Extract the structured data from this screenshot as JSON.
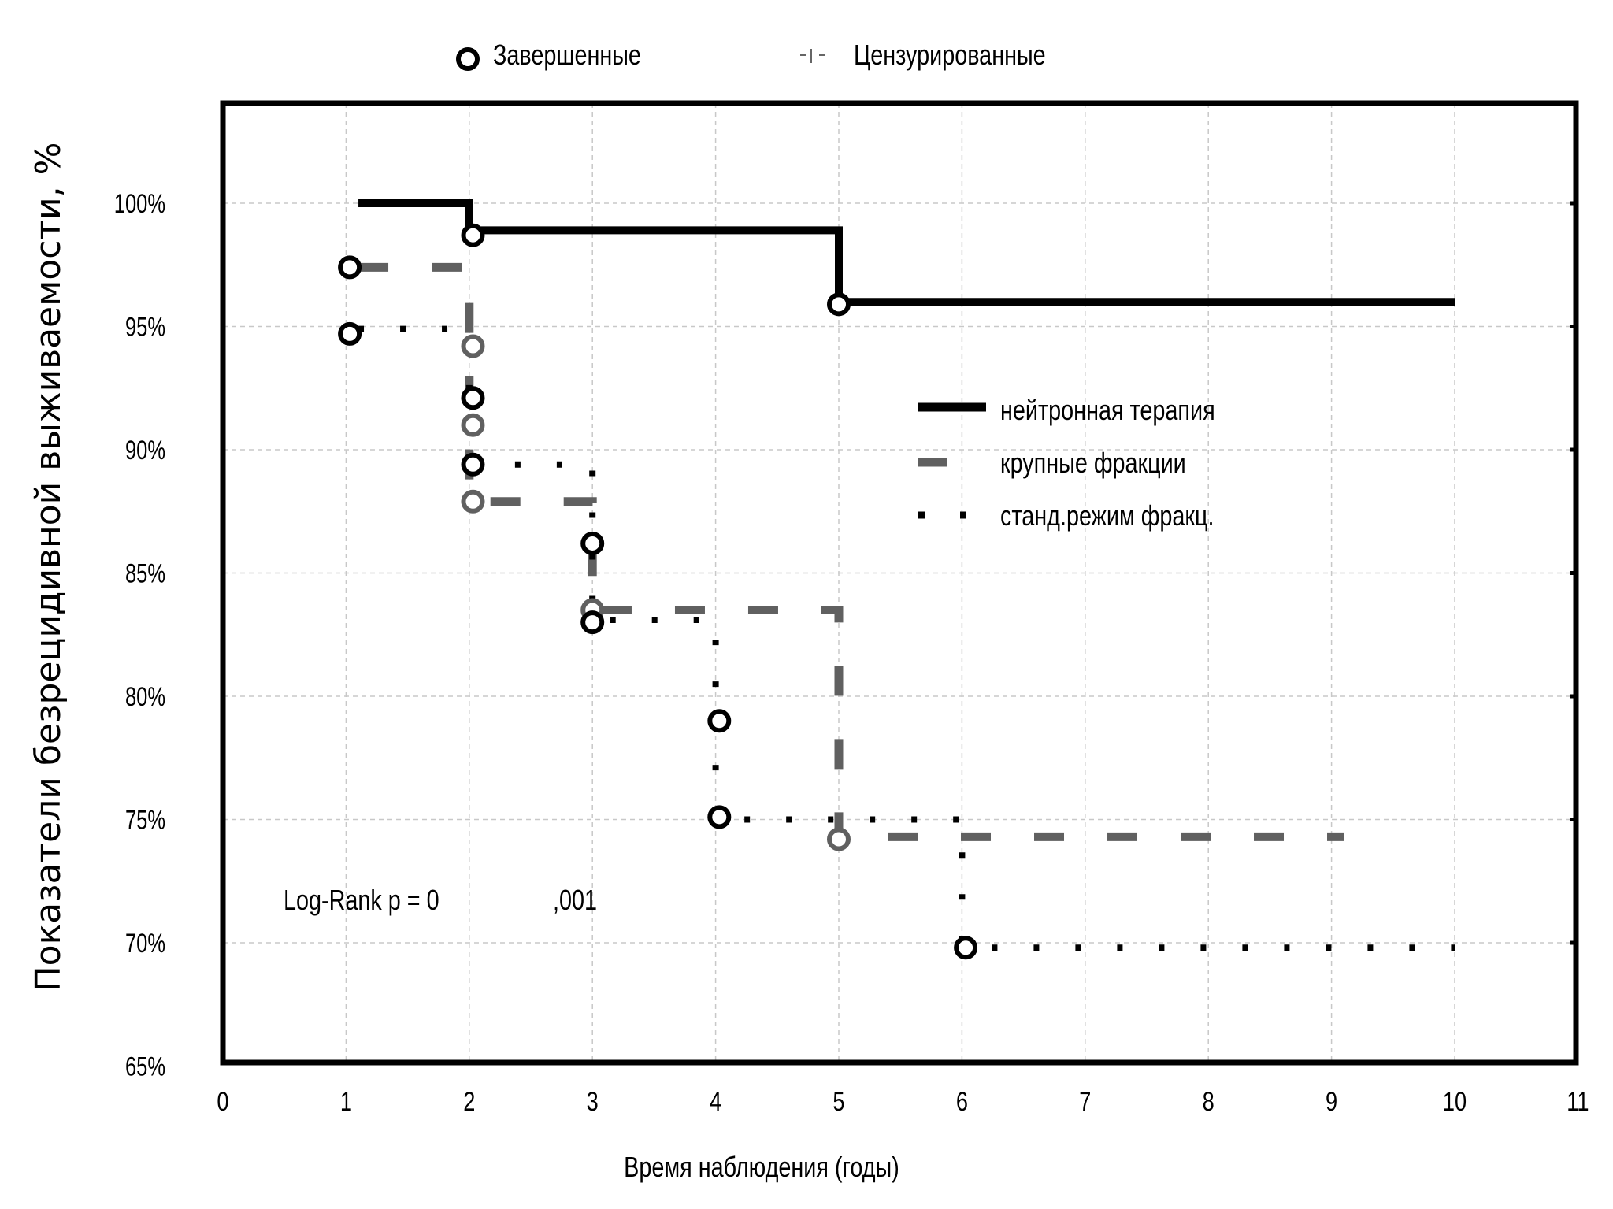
{
  "legend_top": {
    "events_label": "Завершенные",
    "censored_label": "Цензурированные"
  },
  "legend_series": {
    "s1": "нейтронная терапия",
    "s2": "крупные фракции",
    "s3": "станд.режим фракц."
  },
  "annotation": {
    "prefix": "Log-Rank p = 0",
    "suffix": ",001"
  },
  "colors": {
    "series1": "#000000",
    "series2": "#606060",
    "series3": "#000000",
    "grid": "#c8c8c8"
  },
  "chart_data": {
    "type": "line",
    "subtype": "kaplan-meier step",
    "title": "",
    "xlabel": "Время наблюдения (годы)",
    "ylabel": "Показатели безрецидивной выживаемости, %",
    "xlim": [
      0,
      11
    ],
    "ylim": [
      65,
      103
    ],
    "x_ticks": [
      "0",
      "1",
      "2",
      "3",
      "4",
      "5",
      "6",
      "7",
      "8",
      "9",
      "10",
      "11"
    ],
    "y_ticks": [
      "65%",
      "70%",
      "75%",
      "80%",
      "85%",
      "90%",
      "95%",
      "100%"
    ],
    "y_tick_values": [
      65,
      70,
      75,
      80,
      85,
      90,
      95,
      100
    ],
    "grid": true,
    "series": [
      {
        "name": "нейтронная терапия",
        "steps": [
          [
            1.1,
            100
          ],
          [
            2.0,
            98.9
          ],
          [
            5.0,
            96.0
          ],
          [
            10.0,
            96.0
          ]
        ],
        "events": [
          [
            2.03,
            98.7
          ],
          [
            5.0,
            95.9
          ]
        ]
      },
      {
        "name": "крупные фракции",
        "steps": [
          [
            1.1,
            97.4
          ],
          [
            2.0,
            87.9
          ],
          [
            3.0,
            83.5
          ],
          [
            5.0,
            74.3
          ],
          [
            9.1,
            74.3
          ]
        ],
        "events": [
          [
            2.03,
            94.2
          ],
          [
            2.03,
            91.0
          ],
          [
            2.03,
            87.9
          ],
          [
            3.0,
            83.5
          ],
          [
            5.0,
            74.2
          ]
        ]
      },
      {
        "name": "станд.режим фракц.",
        "steps": [
          [
            1.1,
            94.9
          ],
          [
            2.0,
            89.4
          ],
          [
            3.0,
            83.1
          ],
          [
            4.0,
            75.0
          ],
          [
            6.0,
            69.8
          ],
          [
            10.0,
            69.8
          ]
        ],
        "events": [
          [
            1.03,
            97.4
          ],
          [
            1.03,
            94.7
          ],
          [
            2.03,
            92.1
          ],
          [
            2.03,
            89.4
          ],
          [
            3.0,
            86.2
          ],
          [
            3.0,
            83.0
          ],
          [
            4.03,
            79.0
          ],
          [
            4.03,
            75.1
          ],
          [
            6.03,
            69.8
          ]
        ]
      }
    ]
  }
}
